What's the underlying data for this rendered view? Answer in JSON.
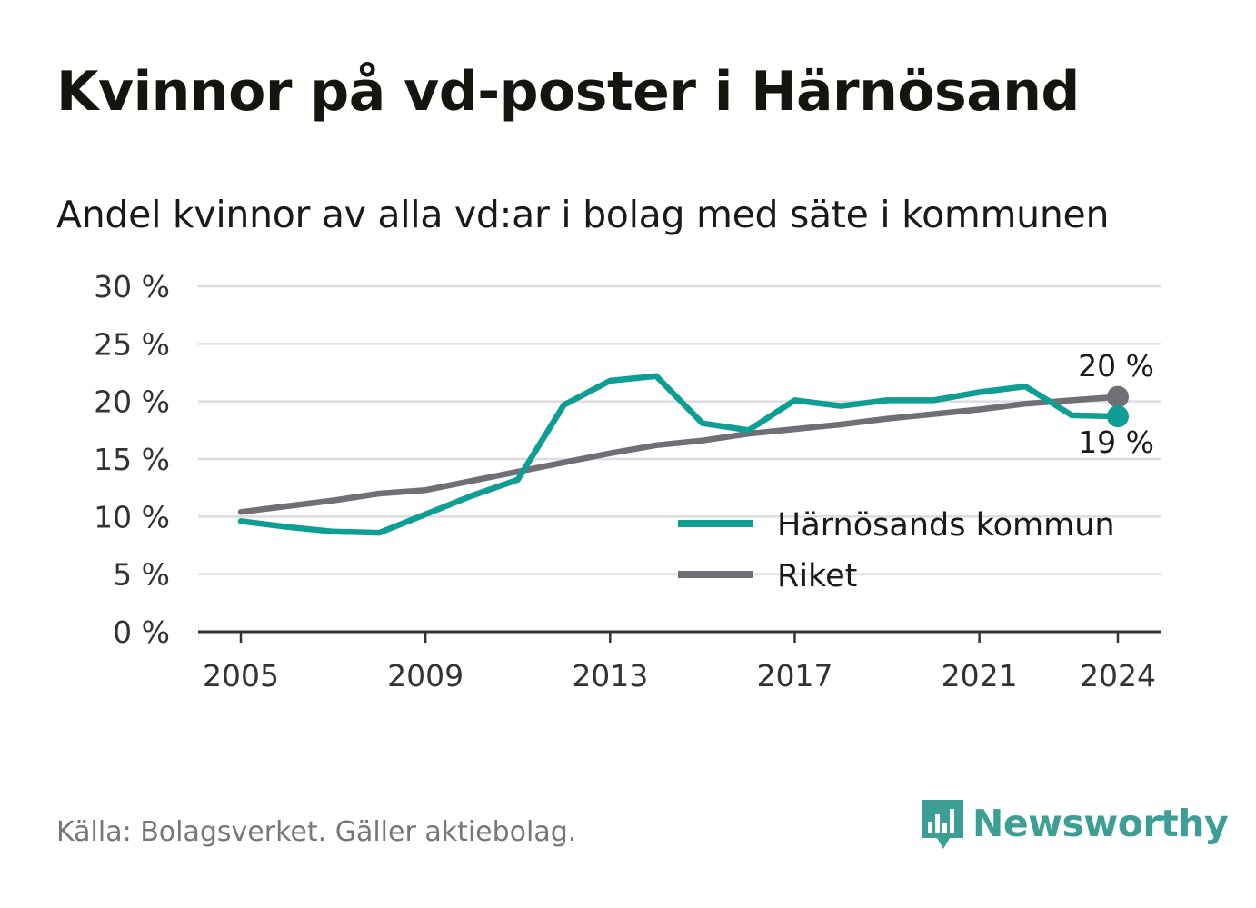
{
  "title": "Kvinnor på vd-poster i Härnösand",
  "subtitle": "Andel kvinnor av alla vd:ar i bolag med säte i kommunen",
  "source": "Källa: Bolagsverket. Gäller aktiebolag.",
  "brand": "Newsworthy",
  "colors": {
    "harnosand": "#0f9e93",
    "riket": "#706f76",
    "grid": "#dddddd",
    "axis": "#333333",
    "brand": "#3c9e95"
  },
  "chart_data": {
    "type": "line",
    "ylim": [
      0,
      30
    ],
    "yticks": [
      0,
      5,
      10,
      15,
      20,
      25,
      30
    ],
    "ytick_labels": [
      "0 %",
      "5 %",
      "10 %",
      "15 %",
      "20 %",
      "25 %",
      "30 %"
    ],
    "xlim": [
      2005,
      2024
    ],
    "xticks": [
      2005,
      2009,
      2013,
      2017,
      2021,
      2024
    ],
    "xtick_labels": [
      "2005",
      "2009",
      "2013",
      "2017",
      "2021",
      "2024"
    ],
    "x": [
      2005,
      2006,
      2007,
      2008,
      2009,
      2010,
      2011,
      2012,
      2013,
      2014,
      2015,
      2016,
      2017,
      2018,
      2019,
      2020,
      2021,
      2022,
      2023,
      2024
    ],
    "grid": true,
    "legend_position": "bottom-right",
    "series": [
      {
        "name": "Härnösands kommun",
        "color": "#0f9e93",
        "values": [
          9.6,
          9.1,
          8.7,
          8.6,
          10.2,
          11.8,
          13.2,
          19.7,
          21.8,
          22.2,
          18.1,
          17.5,
          20.1,
          19.6,
          20.1,
          20.1,
          20.8,
          21.3,
          18.8,
          18.7
        ],
        "end_label": "19 %"
      },
      {
        "name": "Riket",
        "color": "#706f76",
        "values": [
          10.4,
          10.9,
          11.4,
          12.0,
          12.3,
          13.1,
          13.9,
          14.7,
          15.5,
          16.2,
          16.6,
          17.2,
          17.6,
          18.0,
          18.5,
          18.9,
          19.3,
          19.8,
          20.1,
          20.4
        ],
        "end_label": "20 %"
      }
    ]
  }
}
